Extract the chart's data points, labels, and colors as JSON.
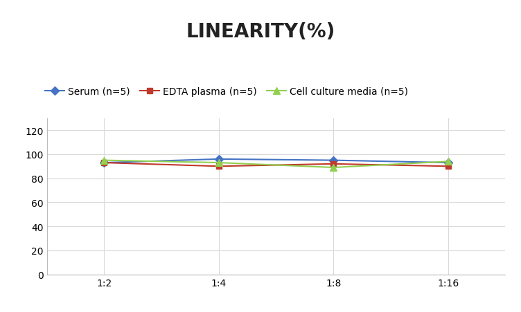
{
  "title": "LINEARITY(%)",
  "x_labels": [
    "1:2",
    "1:4",
    "1:8",
    "1:16"
  ],
  "x_positions": [
    0,
    1,
    2,
    3
  ],
  "series": [
    {
      "label": "Serum (n=5)",
      "values": [
        93,
        96,
        95,
        93
      ],
      "color": "#4472C4",
      "marker": "D",
      "marker_size": 6,
      "linewidth": 1.5
    },
    {
      "label": "EDTA plasma (n=5)",
      "values": [
        93,
        90,
        92,
        90
      ],
      "color": "#C0392B",
      "marker": "s",
      "marker_size": 6,
      "linewidth": 1.5
    },
    {
      "label": "Cell culture media (n=5)",
      "values": [
        95,
        93,
        89,
        94
      ],
      "color": "#92D050",
      "marker": "^",
      "marker_size": 7,
      "linewidth": 1.5
    }
  ],
  "ylim": [
    0,
    130
  ],
  "yticks": [
    0,
    20,
    40,
    60,
    80,
    100,
    120
  ],
  "background_color": "#ffffff",
  "title_fontsize": 20,
  "title_fontweight": "bold",
  "legend_fontsize": 10,
  "tick_fontsize": 10,
  "grid_color": "#d9d9d9",
  "grid_linewidth": 0.8
}
